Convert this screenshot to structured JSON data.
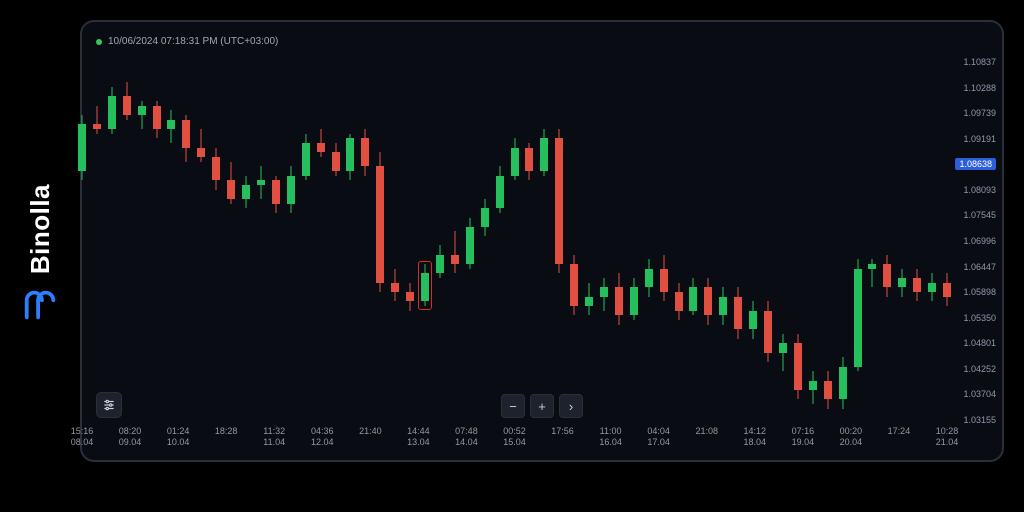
{
  "brand": {
    "name": "Binolla",
    "logo_color": "#2c7fff"
  },
  "timestamp": {
    "text": "10/06/2024 07:18:31 PM (UTC+03:00)",
    "dot_color": "#34c759"
  },
  "colors": {
    "bg": "#0a0c14",
    "up": "#25c05d",
    "down": "#e04f3f",
    "border": "#2a2f3a",
    "gridtext": "#9198a8",
    "badge_bg": "#2c5fd9",
    "highlight": "#e02828"
  },
  "chart": {
    "type": "candlestick",
    "y_min": 1.03155,
    "y_max": 1.10837,
    "y_ticks": [
      1.10837,
      1.10288,
      1.09739,
      1.09191,
      1.08093,
      1.07545,
      1.06996,
      1.06447,
      1.05898,
      1.0535,
      1.04801,
      1.04252,
      1.03704,
      1.03155
    ],
    "y_badge": {
      "value": 1.08638
    },
    "x_ticks": [
      {
        "t": "15:16",
        "d": "08.04",
        "p": 0
      },
      {
        "t": "08:20",
        "d": "09.04",
        "p": 1
      },
      {
        "t": "01:24",
        "d": "10.04",
        "p": 2
      },
      {
        "t": "18:28",
        "d": "",
        "p": 3
      },
      {
        "t": "11:32",
        "d": "11.04",
        "p": 4
      },
      {
        "t": "04:36",
        "d": "12.04",
        "p": 5
      },
      {
        "t": "21:40",
        "d": "",
        "p": 6
      },
      {
        "t": "14:44",
        "d": "13.04",
        "p": 7
      },
      {
        "t": "07:48",
        "d": "14.04",
        "p": 8
      },
      {
        "t": "00:52",
        "d": "15.04",
        "p": 9
      },
      {
        "t": "17:56",
        "d": "",
        "p": 10
      },
      {
        "t": "11:00",
        "d": "16.04",
        "p": 11
      },
      {
        "t": "04:04",
        "d": "17.04",
        "p": 12
      },
      {
        "t": "21:08",
        "d": "",
        "p": 13
      },
      {
        "t": "14:12",
        "d": "18.04",
        "p": 14
      },
      {
        "t": "07:16",
        "d": "19.04",
        "p": 15
      },
      {
        "t": "00:20",
        "d": "20.04",
        "p": 16
      },
      {
        "t": "17:24",
        "d": "",
        "p": 17
      },
      {
        "t": "10:28",
        "d": "21.04",
        "p": 18
      }
    ],
    "candle_width": 8,
    "candles": [
      {
        "o": 1.085,
        "h": 1.097,
        "l": 1.083,
        "c": 1.095
      },
      {
        "o": 1.095,
        "h": 1.099,
        "l": 1.093,
        "c": 1.094
      },
      {
        "o": 1.094,
        "h": 1.103,
        "l": 1.093,
        "c": 1.101
      },
      {
        "o": 1.101,
        "h": 1.104,
        "l": 1.096,
        "c": 1.097
      },
      {
        "o": 1.097,
        "h": 1.1,
        "l": 1.094,
        "c": 1.099
      },
      {
        "o": 1.099,
        "h": 1.1,
        "l": 1.092,
        "c": 1.094
      },
      {
        "o": 1.094,
        "h": 1.098,
        "l": 1.091,
        "c": 1.096
      },
      {
        "o": 1.096,
        "h": 1.097,
        "l": 1.087,
        "c": 1.09
      },
      {
        "o": 1.09,
        "h": 1.094,
        "l": 1.087,
        "c": 1.088
      },
      {
        "o": 1.088,
        "h": 1.09,
        "l": 1.081,
        "c": 1.083
      },
      {
        "o": 1.083,
        "h": 1.087,
        "l": 1.078,
        "c": 1.079
      },
      {
        "o": 1.079,
        "h": 1.084,
        "l": 1.077,
        "c": 1.082
      },
      {
        "o": 1.082,
        "h": 1.086,
        "l": 1.079,
        "c": 1.083
      },
      {
        "o": 1.083,
        "h": 1.084,
        "l": 1.076,
        "c": 1.078
      },
      {
        "o": 1.078,
        "h": 1.086,
        "l": 1.076,
        "c": 1.084
      },
      {
        "o": 1.084,
        "h": 1.093,
        "l": 1.083,
        "c": 1.091
      },
      {
        "o": 1.091,
        "h": 1.094,
        "l": 1.088,
        "c": 1.089
      },
      {
        "o": 1.089,
        "h": 1.091,
        "l": 1.084,
        "c": 1.085
      },
      {
        "o": 1.085,
        "h": 1.093,
        "l": 1.083,
        "c": 1.092
      },
      {
        "o": 1.092,
        "h": 1.094,
        "l": 1.084,
        "c": 1.086
      },
      {
        "o": 1.086,
        "h": 1.089,
        "l": 1.059,
        "c": 1.061
      },
      {
        "o": 1.061,
        "h": 1.064,
        "l": 1.057,
        "c": 1.059
      },
      {
        "o": 1.059,
        "h": 1.061,
        "l": 1.055,
        "c": 1.057
      },
      {
        "o": 1.057,
        "h": 1.065,
        "l": 1.056,
        "c": 1.063
      },
      {
        "o": 1.063,
        "h": 1.069,
        "l": 1.062,
        "c": 1.067
      },
      {
        "o": 1.067,
        "h": 1.072,
        "l": 1.063,
        "c": 1.065
      },
      {
        "o": 1.065,
        "h": 1.075,
        "l": 1.064,
        "c": 1.073
      },
      {
        "o": 1.073,
        "h": 1.079,
        "l": 1.071,
        "c": 1.077
      },
      {
        "o": 1.077,
        "h": 1.086,
        "l": 1.076,
        "c": 1.084
      },
      {
        "o": 1.084,
        "h": 1.092,
        "l": 1.083,
        "c": 1.09
      },
      {
        "o": 1.09,
        "h": 1.091,
        "l": 1.083,
        "c": 1.085
      },
      {
        "o": 1.085,
        "h": 1.094,
        "l": 1.084,
        "c": 1.092
      },
      {
        "o": 1.092,
        "h": 1.094,
        "l": 1.063,
        "c": 1.065
      },
      {
        "o": 1.065,
        "h": 1.067,
        "l": 1.054,
        "c": 1.056
      },
      {
        "o": 1.056,
        "h": 1.061,
        "l": 1.054,
        "c": 1.058
      },
      {
        "o": 1.058,
        "h": 1.062,
        "l": 1.055,
        "c": 1.06
      },
      {
        "o": 1.06,
        "h": 1.063,
        "l": 1.052,
        "c": 1.054
      },
      {
        "o": 1.054,
        "h": 1.062,
        "l": 1.053,
        "c": 1.06
      },
      {
        "o": 1.06,
        "h": 1.066,
        "l": 1.058,
        "c": 1.064
      },
      {
        "o": 1.064,
        "h": 1.067,
        "l": 1.057,
        "c": 1.059
      },
      {
        "o": 1.059,
        "h": 1.061,
        "l": 1.053,
        "c": 1.055
      },
      {
        "o": 1.055,
        "h": 1.062,
        "l": 1.054,
        "c": 1.06
      },
      {
        "o": 1.06,
        "h": 1.062,
        "l": 1.052,
        "c": 1.054
      },
      {
        "o": 1.054,
        "h": 1.06,
        "l": 1.052,
        "c": 1.058
      },
      {
        "o": 1.058,
        "h": 1.06,
        "l": 1.049,
        "c": 1.051
      },
      {
        "o": 1.051,
        "h": 1.057,
        "l": 1.049,
        "c": 1.055
      },
      {
        "o": 1.055,
        "h": 1.057,
        "l": 1.044,
        "c": 1.046
      },
      {
        "o": 1.046,
        "h": 1.05,
        "l": 1.042,
        "c": 1.048
      },
      {
        "o": 1.048,
        "h": 1.05,
        "l": 1.036,
        "c": 1.038
      },
      {
        "o": 1.038,
        "h": 1.042,
        "l": 1.035,
        "c": 1.04
      },
      {
        "o": 1.04,
        "h": 1.042,
        "l": 1.034,
        "c": 1.036
      },
      {
        "o": 1.036,
        "h": 1.045,
        "l": 1.034,
        "c": 1.043
      },
      {
        "o": 1.043,
        "h": 1.066,
        "l": 1.042,
        "c": 1.064
      },
      {
        "o": 1.064,
        "h": 1.066,
        "l": 1.06,
        "c": 1.065
      },
      {
        "o": 1.065,
        "h": 1.067,
        "l": 1.058,
        "c": 1.06
      },
      {
        "o": 1.06,
        "h": 1.064,
        "l": 1.058,
        "c": 1.062
      },
      {
        "o": 1.062,
        "h": 1.064,
        "l": 1.057,
        "c": 1.059
      },
      {
        "o": 1.059,
        "h": 1.063,
        "l": 1.057,
        "c": 1.061
      },
      {
        "o": 1.061,
        "h": 1.063,
        "l": 1.056,
        "c": 1.058
      }
    ],
    "highlight_index": 23
  },
  "controls": {
    "zoom_out": "−",
    "zoom_in": "+",
    "forward": "›"
  }
}
